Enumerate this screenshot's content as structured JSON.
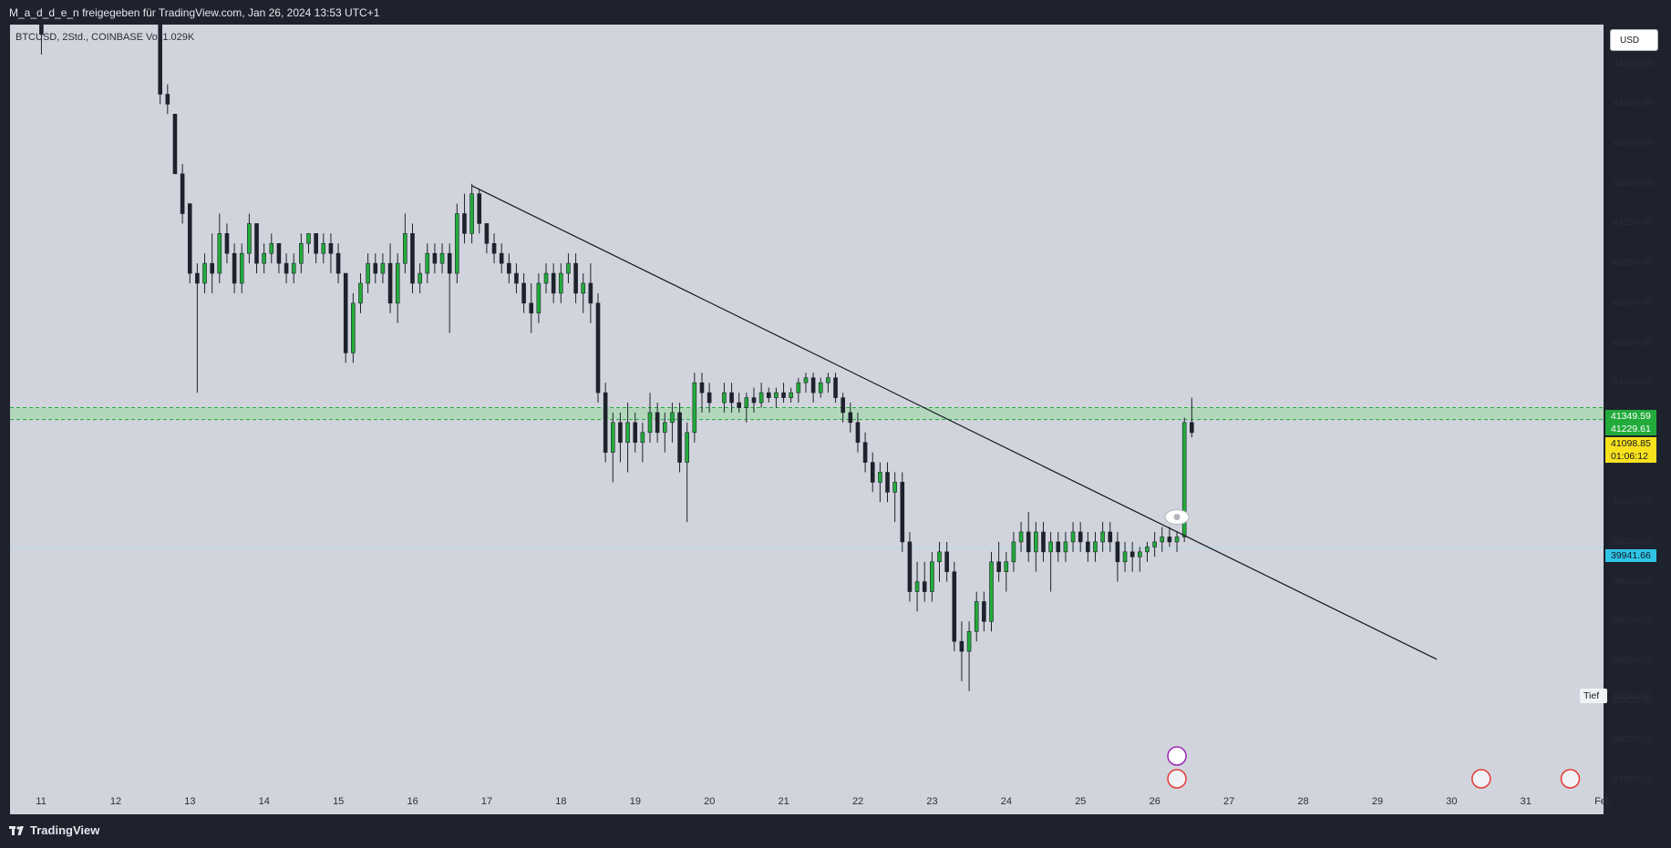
{
  "header": {
    "title": "M_a_d_d_e_n freigegeben für TradingView.com, Jan 26, 2024 13:53 UTC+1"
  },
  "symbol": {
    "label": "BTCUSD, 2Std., COINBASE  Vol 1.029K"
  },
  "currency": {
    "label": "USD"
  },
  "price_tags": {
    "high": "41349.59",
    "high2": "41229.61",
    "last": "41098.85",
    "countdown": "01:06:12",
    "blue": "39941.66",
    "low_label": "Tief",
    "low_value": "38501.00"
  },
  "footer": {
    "brand": "TradingView"
  },
  "colors": {
    "background": "#d1d4dc",
    "up_body": "#22ab3b",
    "down_body": "#1e222d",
    "wick": "#1e222d",
    "zone_fill": "#a8d8b0",
    "zone_line": "#22ab3b",
    "trendline": "#131722"
  },
  "chart_data": {
    "type": "candlestick",
    "title": "BTCUSD, 2Std., COINBASE",
    "ylim": [
      37500,
      45200
    ],
    "yticks": [
      44800,
      44400,
      44000,
      43600,
      43200,
      42800,
      42400,
      42000,
      41600,
      41200,
      40800,
      40400,
      40000,
      39600,
      39200,
      38800,
      38400,
      38000,
      37600
    ],
    "ytick_labels": [
      "44800.00",
      "44400.00",
      "44000.00",
      "43600.00",
      "43200.00",
      "42800.00",
      "42400.00",
      "42000.00",
      "41600.00",
      "41200.00",
      "40800.00",
      "40400.00",
      "40000.00",
      "39600.00",
      "39200.00",
      "38800.00",
      "38400.00",
      "38000.00",
      "37600.00"
    ],
    "xtick_labels": [
      "11",
      "12",
      "13",
      "14",
      "15",
      "16",
      "17",
      "18",
      "19",
      "20",
      "21",
      "22",
      "23",
      "24",
      "25",
      "26",
      "27",
      "28",
      "29",
      "30",
      "31",
      "Feb"
    ],
    "x_domain_days": [
      10.7,
      31.95
    ],
    "xticks_days": [
      11,
      12,
      13,
      14,
      15,
      16,
      17,
      18,
      19,
      20,
      21,
      22,
      23,
      24,
      25,
      26,
      27,
      28,
      29,
      30,
      31,
      32
    ],
    "zone": {
      "top": 41349.59,
      "bottom": 41229.61
    },
    "current_price": 41098.85,
    "reference_price": 39941.66,
    "trendline": {
      "from": {
        "day": 16.8,
        "price": 43580
      },
      "to": {
        "day": 29.8,
        "price": 38820
      }
    },
    "candles": [
      {
        "day": 11.0,
        "o": 45300,
        "h": 45300,
        "l": 44900,
        "c": 45100
      },
      {
        "day": 12.6,
        "o": 45300,
        "h": 45300,
        "l": 44400,
        "c": 44500
      },
      {
        "day": 12.7,
        "o": 44500,
        "h": 44600,
        "l": 44300,
        "c": 44400
      },
      {
        "day": 12.8,
        "o": 44300,
        "h": 44300,
        "l": 43700,
        "c": 43700
      },
      {
        "day": 12.9,
        "o": 43700,
        "h": 43800,
        "l": 43200,
        "c": 43300
      },
      {
        "day": 13.0,
        "o": 43400,
        "h": 43400,
        "l": 42600,
        "c": 42700
      },
      {
        "day": 13.1,
        "o": 42700,
        "h": 42800,
        "l": 41500,
        "c": 42600
      },
      {
        "day": 13.2,
        "o": 42600,
        "h": 42900,
        "l": 42500,
        "c": 42800
      },
      {
        "day": 13.3,
        "o": 42800,
        "h": 43100,
        "l": 42500,
        "c": 42700
      },
      {
        "day": 13.4,
        "o": 42700,
        "h": 43300,
        "l": 42600,
        "c": 43100
      },
      {
        "day": 13.5,
        "o": 43100,
        "h": 43200,
        "l": 42800,
        "c": 42900
      },
      {
        "day": 13.6,
        "o": 42900,
        "h": 43000,
        "l": 42500,
        "c": 42600
      },
      {
        "day": 13.7,
        "o": 42600,
        "h": 43000,
        "l": 42500,
        "c": 42900
      },
      {
        "day": 13.8,
        "o": 42900,
        "h": 43300,
        "l": 42800,
        "c": 43200
      },
      {
        "day": 13.9,
        "o": 43200,
        "h": 43200,
        "l": 42700,
        "c": 42800
      },
      {
        "day": 14.0,
        "o": 42800,
        "h": 43000,
        "l": 42700,
        "c": 42900
      },
      {
        "day": 14.1,
        "o": 42900,
        "h": 43100,
        "l": 42800,
        "c": 43000
      },
      {
        "day": 14.2,
        "o": 43000,
        "h": 43000,
        "l": 42700,
        "c": 42800
      },
      {
        "day": 14.3,
        "o": 42800,
        "h": 42900,
        "l": 42600,
        "c": 42700
      },
      {
        "day": 14.4,
        "o": 42700,
        "h": 42900,
        "l": 42600,
        "c": 42800
      },
      {
        "day": 14.5,
        "o": 42800,
        "h": 43100,
        "l": 42700,
        "c": 43000
      },
      {
        "day": 14.6,
        "o": 43000,
        "h": 43100,
        "l": 42900,
        "c": 43100
      },
      {
        "day": 14.7,
        "o": 43100,
        "h": 43100,
        "l": 42800,
        "c": 42900
      },
      {
        "day": 14.8,
        "o": 42900,
        "h": 43100,
        "l": 42800,
        "c": 43000
      },
      {
        "day": 14.9,
        "o": 43000,
        "h": 43100,
        "l": 42700,
        "c": 42900
      },
      {
        "day": 15.0,
        "o": 42900,
        "h": 43000,
        "l": 42600,
        "c": 42700
      },
      {
        "day": 15.1,
        "o": 42700,
        "h": 42700,
        "l": 41800,
        "c": 41900
      },
      {
        "day": 15.2,
        "o": 41900,
        "h": 42500,
        "l": 41800,
        "c": 42400
      },
      {
        "day": 15.3,
        "o": 42400,
        "h": 42700,
        "l": 42300,
        "c": 42600
      },
      {
        "day": 15.4,
        "o": 42600,
        "h": 42900,
        "l": 42500,
        "c": 42800
      },
      {
        "day": 15.5,
        "o": 42800,
        "h": 42900,
        "l": 42600,
        "c": 42700
      },
      {
        "day": 15.6,
        "o": 42700,
        "h": 42900,
        "l": 42600,
        "c": 42800
      },
      {
        "day": 15.7,
        "o": 42800,
        "h": 43000,
        "l": 42300,
        "c": 42400
      },
      {
        "day": 15.8,
        "o": 42400,
        "h": 42900,
        "l": 42200,
        "c": 42800
      },
      {
        "day": 15.9,
        "o": 42800,
        "h": 43300,
        "l": 42700,
        "c": 43100
      },
      {
        "day": 16.0,
        "o": 43100,
        "h": 43200,
        "l": 42500,
        "c": 42600
      },
      {
        "day": 16.1,
        "o": 42600,
        "h": 42800,
        "l": 42500,
        "c": 42700
      },
      {
        "day": 16.2,
        "o": 42700,
        "h": 43000,
        "l": 42600,
        "c": 42900
      },
      {
        "day": 16.3,
        "o": 42900,
        "h": 43000,
        "l": 42700,
        "c": 42800
      },
      {
        "day": 16.4,
        "o": 42800,
        "h": 43000,
        "l": 42700,
        "c": 42900
      },
      {
        "day": 16.5,
        "o": 42900,
        "h": 43000,
        "l": 42100,
        "c": 42700
      },
      {
        "day": 16.6,
        "o": 42700,
        "h": 43400,
        "l": 42600,
        "c": 43300
      },
      {
        "day": 16.7,
        "o": 43300,
        "h": 43500,
        "l": 43000,
        "c": 43100
      },
      {
        "day": 16.8,
        "o": 43100,
        "h": 43600,
        "l": 43000,
        "c": 43500
      },
      {
        "day": 16.9,
        "o": 43500,
        "h": 43550,
        "l": 43100,
        "c": 43200
      },
      {
        "day": 17.0,
        "o": 43200,
        "h": 43200,
        "l": 42900,
        "c": 43000
      },
      {
        "day": 17.1,
        "o": 43000,
        "h": 43100,
        "l": 42800,
        "c": 42900
      },
      {
        "day": 17.2,
        "o": 42900,
        "h": 43000,
        "l": 42700,
        "c": 42800
      },
      {
        "day": 17.3,
        "o": 42800,
        "h": 42900,
        "l": 42600,
        "c": 42700
      },
      {
        "day": 17.4,
        "o": 42700,
        "h": 42800,
        "l": 42500,
        "c": 42600
      },
      {
        "day": 17.5,
        "o": 42600,
        "h": 42700,
        "l": 42300,
        "c": 42400
      },
      {
        "day": 17.6,
        "o": 42400,
        "h": 42600,
        "l": 42100,
        "c": 42300
      },
      {
        "day": 17.7,
        "o": 42300,
        "h": 42700,
        "l": 42200,
        "c": 42600
      },
      {
        "day": 17.8,
        "o": 42600,
        "h": 42800,
        "l": 42500,
        "c": 42700
      },
      {
        "day": 17.9,
        "o": 42700,
        "h": 42800,
        "l": 42400,
        "c": 42500
      },
      {
        "day": 18.0,
        "o": 42500,
        "h": 42800,
        "l": 42400,
        "c": 42700
      },
      {
        "day": 18.1,
        "o": 42700,
        "h": 42900,
        "l": 42600,
        "c": 42800
      },
      {
        "day": 18.2,
        "o": 42800,
        "h": 42900,
        "l": 42400,
        "c": 42500
      },
      {
        "day": 18.3,
        "o": 42500,
        "h": 42700,
        "l": 42300,
        "c": 42600
      },
      {
        "day": 18.4,
        "o": 42600,
        "h": 42800,
        "l": 42200,
        "c": 42400
      },
      {
        "day": 18.5,
        "o": 42400,
        "h": 42500,
        "l": 41400,
        "c": 41500
      },
      {
        "day": 18.6,
        "o": 41500,
        "h": 41600,
        "l": 40800,
        "c": 40900
      },
      {
        "day": 18.7,
        "o": 40900,
        "h": 41300,
        "l": 40600,
        "c": 41200
      },
      {
        "day": 18.8,
        "o": 41200,
        "h": 41300,
        "l": 40800,
        "c": 41000
      },
      {
        "day": 18.9,
        "o": 41000,
        "h": 41400,
        "l": 40700,
        "c": 41200
      },
      {
        "day": 19.0,
        "o": 41200,
        "h": 41300,
        "l": 40900,
        "c": 41000
      },
      {
        "day": 19.1,
        "o": 41000,
        "h": 41200,
        "l": 40800,
        "c": 41100
      },
      {
        "day": 19.2,
        "o": 41100,
        "h": 41500,
        "l": 41000,
        "c": 41300
      },
      {
        "day": 19.3,
        "o": 41300,
        "h": 41400,
        "l": 41000,
        "c": 41100
      },
      {
        "day": 19.4,
        "o": 41100,
        "h": 41300,
        "l": 40900,
        "c": 41200
      },
      {
        "day": 19.5,
        "o": 41200,
        "h": 41400,
        "l": 41000,
        "c": 41300
      },
      {
        "day": 19.6,
        "o": 41300,
        "h": 41400,
        "l": 40700,
        "c": 40800
      },
      {
        "day": 19.7,
        "o": 40800,
        "h": 41200,
        "l": 40200,
        "c": 41100
      },
      {
        "day": 19.8,
        "o": 41100,
        "h": 41700,
        "l": 41000,
        "c": 41600
      },
      {
        "day": 19.9,
        "o": 41600,
        "h": 41700,
        "l": 41300,
        "c": 41500
      },
      {
        "day": 20.0,
        "o": 41500,
        "h": 41600,
        "l": 41300,
        "c": 41400
      },
      {
        "day": 20.2,
        "o": 41400,
        "h": 41600,
        "l": 41300,
        "c": 41500
      },
      {
        "day": 20.3,
        "o": 41500,
        "h": 41600,
        "l": 41300,
        "c": 41400
      },
      {
        "day": 20.4,
        "o": 41400,
        "h": 41500,
        "l": 41300,
        "c": 41350
      },
      {
        "day": 20.5,
        "o": 41350,
        "h": 41500,
        "l": 41200,
        "c": 41450
      },
      {
        "day": 20.6,
        "o": 41450,
        "h": 41550,
        "l": 41300,
        "c": 41400
      },
      {
        "day": 20.7,
        "o": 41400,
        "h": 41600,
        "l": 41350,
        "c": 41500
      },
      {
        "day": 20.8,
        "o": 41500,
        "h": 41550,
        "l": 41400,
        "c": 41450
      },
      {
        "day": 20.9,
        "o": 41450,
        "h": 41550,
        "l": 41350,
        "c": 41500
      },
      {
        "day": 21.0,
        "o": 41500,
        "h": 41600,
        "l": 41400,
        "c": 41450
      },
      {
        "day": 21.1,
        "o": 41450,
        "h": 41550,
        "l": 41400,
        "c": 41500
      },
      {
        "day": 21.2,
        "o": 41500,
        "h": 41650,
        "l": 41400,
        "c": 41600
      },
      {
        "day": 21.3,
        "o": 41600,
        "h": 41700,
        "l": 41500,
        "c": 41650
      },
      {
        "day": 21.4,
        "o": 41650,
        "h": 41700,
        "l": 41400,
        "c": 41500
      },
      {
        "day": 21.5,
        "o": 41500,
        "h": 41650,
        "l": 41450,
        "c": 41600
      },
      {
        "day": 21.6,
        "o": 41600,
        "h": 41700,
        "l": 41500,
        "c": 41650
      },
      {
        "day": 21.7,
        "o": 41650,
        "h": 41700,
        "l": 41400,
        "c": 41450
      },
      {
        "day": 21.8,
        "o": 41450,
        "h": 41500,
        "l": 41200,
        "c": 41300
      },
      {
        "day": 21.9,
        "o": 41300,
        "h": 41400,
        "l": 41100,
        "c": 41200
      },
      {
        "day": 22.0,
        "o": 41200,
        "h": 41300,
        "l": 40900,
        "c": 41000
      },
      {
        "day": 22.1,
        "o": 41000,
        "h": 41100,
        "l": 40700,
        "c": 40800
      },
      {
        "day": 22.2,
        "o": 40800,
        "h": 40900,
        "l": 40500,
        "c": 40600
      },
      {
        "day": 22.3,
        "o": 40600,
        "h": 40800,
        "l": 40400,
        "c": 40700
      },
      {
        "day": 22.4,
        "o": 40700,
        "h": 40800,
        "l": 40400,
        "c": 40500
      },
      {
        "day": 22.5,
        "o": 40500,
        "h": 40700,
        "l": 40200,
        "c": 40600
      },
      {
        "day": 22.6,
        "o": 40600,
        "h": 40700,
        "l": 39900,
        "c": 40000
      },
      {
        "day": 22.7,
        "o": 40000,
        "h": 40100,
        "l": 39400,
        "c": 39500
      },
      {
        "day": 22.8,
        "o": 39500,
        "h": 39800,
        "l": 39300,
        "c": 39600
      },
      {
        "day": 22.9,
        "o": 39600,
        "h": 39800,
        "l": 39400,
        "c": 39500
      },
      {
        "day": 23.0,
        "o": 39500,
        "h": 39900,
        "l": 39400,
        "c": 39800
      },
      {
        "day": 23.1,
        "o": 39800,
        "h": 40000,
        "l": 39600,
        "c": 39900
      },
      {
        "day": 23.2,
        "o": 39900,
        "h": 40000,
        "l": 39600,
        "c": 39700
      },
      {
        "day": 23.3,
        "o": 39700,
        "h": 39800,
        "l": 38900,
        "c": 39000
      },
      {
        "day": 23.4,
        "o": 39000,
        "h": 39200,
        "l": 38600,
        "c": 38900
      },
      {
        "day": 23.5,
        "o": 38900,
        "h": 39200,
        "l": 38501,
        "c": 39100
      },
      {
        "day": 23.6,
        "o": 39100,
        "h": 39500,
        "l": 39000,
        "c": 39400
      },
      {
        "day": 23.7,
        "o": 39400,
        "h": 39500,
        "l": 39100,
        "c": 39200
      },
      {
        "day": 23.8,
        "o": 39200,
        "h": 39900,
        "l": 39100,
        "c": 39800
      },
      {
        "day": 23.9,
        "o": 39800,
        "h": 40000,
        "l": 39600,
        "c": 39700
      },
      {
        "day": 24.0,
        "o": 39700,
        "h": 39900,
        "l": 39500,
        "c": 39800
      },
      {
        "day": 24.1,
        "o": 39800,
        "h": 40100,
        "l": 39700,
        "c": 40000
      },
      {
        "day": 24.2,
        "o": 40000,
        "h": 40200,
        "l": 39900,
        "c": 40100
      },
      {
        "day": 24.3,
        "o": 40100,
        "h": 40300,
        "l": 39800,
        "c": 39900
      },
      {
        "day": 24.4,
        "o": 39900,
        "h": 40200,
        "l": 39700,
        "c": 40100
      },
      {
        "day": 24.5,
        "o": 40100,
        "h": 40200,
        "l": 39800,
        "c": 39900
      },
      {
        "day": 24.6,
        "o": 39900,
        "h": 40100,
        "l": 39500,
        "c": 40000
      },
      {
        "day": 24.7,
        "o": 40000,
        "h": 40100,
        "l": 39800,
        "c": 39900
      },
      {
        "day": 24.8,
        "o": 39900,
        "h": 40100,
        "l": 39800,
        "c": 40000
      },
      {
        "day": 24.9,
        "o": 40000,
        "h": 40200,
        "l": 39900,
        "c": 40100
      },
      {
        "day": 25.0,
        "o": 40100,
        "h": 40200,
        "l": 39900,
        "c": 40000
      },
      {
        "day": 25.1,
        "o": 40000,
        "h": 40100,
        "l": 39800,
        "c": 39900
      },
      {
        "day": 25.2,
        "o": 39900,
        "h": 40100,
        "l": 39800,
        "c": 40000
      },
      {
        "day": 25.3,
        "o": 40000,
        "h": 40200,
        "l": 39900,
        "c": 40100
      },
      {
        "day": 25.4,
        "o": 40100,
        "h": 40200,
        "l": 39900,
        "c": 40000
      },
      {
        "day": 25.5,
        "o": 40000,
        "h": 40100,
        "l": 39600,
        "c": 39800
      },
      {
        "day": 25.6,
        "o": 39800,
        "h": 40000,
        "l": 39700,
        "c": 39900
      },
      {
        "day": 25.7,
        "o": 39900,
        "h": 40000,
        "l": 39700,
        "c": 39850
      },
      {
        "day": 25.8,
        "o": 39850,
        "h": 39950,
        "l": 39700,
        "c": 39900
      },
      {
        "day": 25.9,
        "o": 39900,
        "h": 40000,
        "l": 39800,
        "c": 39950
      },
      {
        "day": 26.0,
        "o": 39950,
        "h": 40100,
        "l": 39850,
        "c": 40000
      },
      {
        "day": 26.1,
        "o": 40000,
        "h": 40150,
        "l": 39900,
        "c": 40050
      },
      {
        "day": 26.2,
        "o": 40050,
        "h": 40150,
        "l": 39950,
        "c": 40000
      },
      {
        "day": 26.3,
        "o": 40000,
        "h": 40100,
        "l": 39900,
        "c": 40050
      },
      {
        "day": 26.4,
        "o": 40050,
        "h": 41250,
        "l": 40000,
        "c": 41200
      },
      {
        "day": 26.5,
        "o": 41200,
        "h": 41450,
        "l": 41050,
        "c": 41098.85
      }
    ]
  }
}
